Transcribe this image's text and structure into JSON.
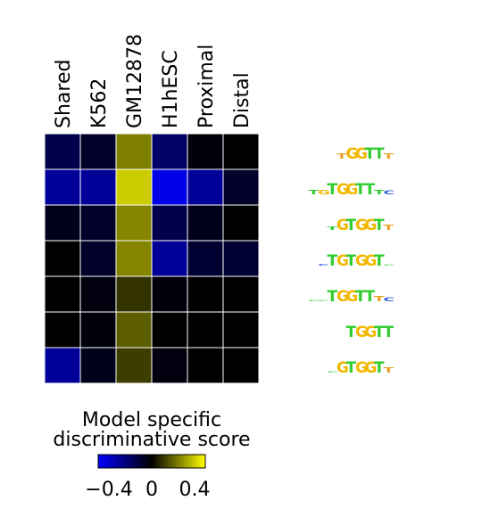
{
  "chart_data": {
    "type": "heatmap",
    "columns": [
      "Shared",
      "K562",
      "GM12878",
      "H1hESC",
      "Proximal",
      "Distal"
    ],
    "values": [
      [
        -0.15,
        -0.08,
        0.25,
        -0.2,
        -0.02,
        0.0
      ],
      [
        -0.3,
        -0.3,
        0.4,
        -0.45,
        -0.3,
        -0.08
      ],
      [
        -0.05,
        -0.08,
        0.26,
        -0.15,
        -0.05,
        0.0
      ],
      [
        0.0,
        -0.08,
        0.26,
        -0.3,
        -0.1,
        -0.1
      ],
      [
        0.0,
        -0.03,
        0.1,
        -0.02,
        0.0,
        0.0
      ],
      [
        0.0,
        -0.02,
        0.18,
        0.0,
        0.0,
        0.0
      ],
      [
        -0.3,
        -0.05,
        0.12,
        -0.03,
        0.0,
        0.0
      ]
    ],
    "row_motifs": [
      [
        {
          "char": "T",
          "color": "#e8a020",
          "scale": 0.45
        },
        {
          "char": "G",
          "color": "#f2b800",
          "scale": 1
        },
        {
          "char": "G",
          "color": "#f2b800",
          "scale": 1
        },
        {
          "char": "T",
          "color": "#2ecc2e",
          "scale": 1
        },
        {
          "char": "T",
          "color": "#2ecc2e",
          "scale": 1
        },
        {
          "char": "T",
          "color": "#e8a020",
          "scale": 0.45
        }
      ],
      [
        {
          "char": "T",
          "color": "#2ecc2e",
          "scale": 0.4
        },
        {
          "char": "G",
          "color": "#f2b800",
          "scale": 0.4
        },
        {
          "char": "T",
          "color": "#2ecc2e",
          "scale": 1
        },
        {
          "char": "G",
          "color": "#f2b800",
          "scale": 1
        },
        {
          "char": "G",
          "color": "#f2b800",
          "scale": 1
        },
        {
          "char": "T",
          "color": "#2ecc2e",
          "scale": 1
        },
        {
          "char": "T",
          "color": "#2ecc2e",
          "scale": 1
        },
        {
          "char": "T",
          "color": "#2ecc2e",
          "scale": 0.4
        },
        {
          "char": "C",
          "color": "#2a5ad8",
          "scale": 0.35
        }
      ],
      [
        {
          "char": "T",
          "color": "#2ecc2e",
          "scale": 0.3
        },
        {
          "char": "G",
          "color": "#f2b800",
          "scale": 1
        },
        {
          "char": "T",
          "color": "#2ecc2e",
          "scale": 1
        },
        {
          "char": "G",
          "color": "#f2b800",
          "scale": 1
        },
        {
          "char": "G",
          "color": "#f2b800",
          "scale": 1
        },
        {
          "char": "T",
          "color": "#2ecc2e",
          "scale": 1
        },
        {
          "char": "T",
          "color": "#e8a020",
          "scale": 0.45
        }
      ],
      [
        {
          "char": "C",
          "color": "#2a5ad8",
          "scale": 0.15
        },
        {
          "char": "T",
          "color": "#2ecc2e",
          "scale": 1
        },
        {
          "char": "G",
          "color": "#f2b800",
          "scale": 1
        },
        {
          "char": "T",
          "color": "#2ecc2e",
          "scale": 1
        },
        {
          "char": "G",
          "color": "#f2b800",
          "scale": 1
        },
        {
          "char": "G",
          "color": "#f2b800",
          "scale": 1
        },
        {
          "char": "T",
          "color": "#2ecc2e",
          "scale": 1
        },
        {
          "char": "C",
          "color": "#2ecc2e",
          "scale": 0.12
        }
      ],
      [
        {
          "char": "C",
          "color": "#2ecc2e",
          "scale": 0.12
        },
        {
          "char": "C",
          "color": "#2ecc2e",
          "scale": 0.12
        },
        {
          "char": "T",
          "color": "#2ecc2e",
          "scale": 1
        },
        {
          "char": "G",
          "color": "#f2b800",
          "scale": 1
        },
        {
          "char": "G",
          "color": "#f2b800",
          "scale": 1
        },
        {
          "char": "T",
          "color": "#2ecc2e",
          "scale": 1
        },
        {
          "char": "T",
          "color": "#2ecc2e",
          "scale": 1
        },
        {
          "char": "T",
          "color": "#e8a020",
          "scale": 0.45
        },
        {
          "char": "C",
          "color": "#2a5ad8",
          "scale": 0.35
        }
      ],
      [
        {
          "char": "T",
          "color": "#2ecc2e",
          "scale": 1
        },
        {
          "char": "G",
          "color": "#f2b800",
          "scale": 1
        },
        {
          "char": "G",
          "color": "#f2b800",
          "scale": 1
        },
        {
          "char": "T",
          "color": "#2ecc2e",
          "scale": 1
        },
        {
          "char": "T",
          "color": "#2ecc2e",
          "scale": 1
        }
      ],
      [
        {
          "char": "C",
          "color": "#2ecc2e",
          "scale": 0.12
        },
        {
          "char": "G",
          "color": "#f2b800",
          "scale": 1
        },
        {
          "char": "T",
          "color": "#2ecc2e",
          "scale": 1
        },
        {
          "char": "G",
          "color": "#f2b800",
          "scale": 1
        },
        {
          "char": "G",
          "color": "#f2b800",
          "scale": 1
        },
        {
          "char": "T",
          "color": "#2ecc2e",
          "scale": 1
        },
        {
          "char": "T",
          "color": "#e8a020",
          "scale": 0.45
        }
      ]
    ],
    "colorbar": {
      "title_line1": "Model specific",
      "title_line2": "discriminative score",
      "ticks": [
        {
          "value": -0.4,
          "label": "−0.4"
        },
        {
          "value": 0,
          "label": "0"
        },
        {
          "value": 0.4,
          "label": "0.4"
        }
      ],
      "min": -0.5,
      "max": 0.5,
      "colors": {
        "low": "#0000ff",
        "mid": "#000000",
        "high": "#ffff00"
      }
    }
  }
}
